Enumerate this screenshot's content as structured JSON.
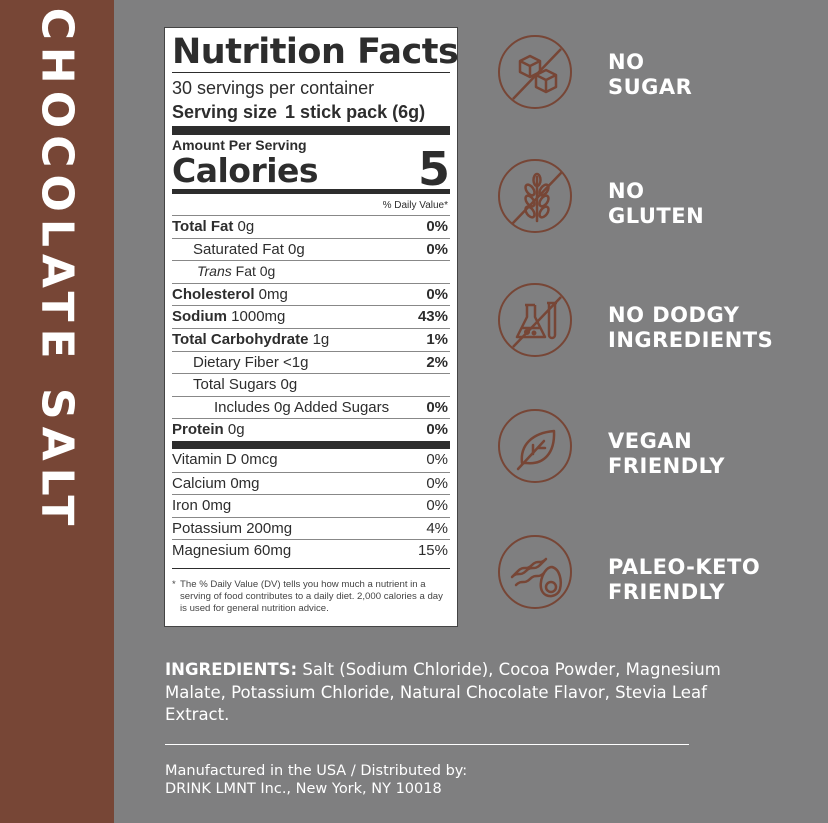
{
  "flavor": "CHOCOLATE SALT",
  "colors": {
    "brand": "#774636",
    "background": "#7f7f80",
    "text_light": "#ffffff",
    "label_ink": "#2d2d2d"
  },
  "nutrition": {
    "title": "Nutrition Facts",
    "servings": "30 servings per container",
    "serving_size_label": "Serving size",
    "serving_size_value": "1 stick pack (6g)",
    "amount_per_serving": "Amount Per Serving",
    "calories_label": "Calories",
    "calories_value": "5",
    "dv_header": "% Daily Value*",
    "rows": [
      {
        "bold": "Total Fat",
        "rest": " 0g",
        "pct": "0%"
      },
      {
        "bold": "",
        "rest": "Saturated Fat 0g",
        "pct": "0%"
      },
      {
        "italic": "Trans",
        "rest": " Fat 0g",
        "pct": ""
      },
      {
        "bold": "Cholesterol",
        "rest": " 0mg",
        "pct": "0%"
      },
      {
        "bold": "Sodium",
        "rest": " 1000mg",
        "pct": "43%"
      },
      {
        "bold": "Total Carbohydrate",
        "rest": " 1g",
        "pct": "1%"
      },
      {
        "bold": "",
        "rest": "Dietary Fiber <1g",
        "pct": "2%"
      },
      {
        "bold": "",
        "rest": "Total Sugars 0g",
        "pct": ""
      },
      {
        "bold": "",
        "rest": "Includes 0g Added Sugars",
        "pct": "0%"
      },
      {
        "bold": "Protein",
        "rest": " 0g",
        "pct": "0%"
      }
    ],
    "vitamins": [
      {
        "name": "Vitamin D 0mcg",
        "pct": "0%"
      },
      {
        "name": "Calcium 0mg",
        "pct": "0%"
      },
      {
        "name": "Iron 0mg",
        "pct": "0%"
      },
      {
        "name": "Potassium 200mg",
        "pct": "4%"
      },
      {
        "name": "Magnesium 60mg",
        "pct": "15%"
      }
    ],
    "footnote_star": "*",
    "footnote": "The % Daily Value (DV) tells you how much a nutrient in a serving of food contributes to a daily diet. 2,000 calories a day is used for general nutrition advice."
  },
  "claims": [
    {
      "line1": "NO",
      "line2": "SUGAR",
      "icon": "sugar-cubes-crossed-icon"
    },
    {
      "line1": "NO",
      "line2": "GLUTEN",
      "icon": "wheat-crossed-icon"
    },
    {
      "line1": "NO DODGY",
      "line2": "INGREDIENTS",
      "icon": "lab-flask-crossed-icon"
    },
    {
      "line1": "VEGAN",
      "line2": "FRIENDLY",
      "icon": "leaf-icon"
    },
    {
      "line1": "PALEO-KETO",
      "line2": "FRIENDLY",
      "icon": "bacon-avocado-icon"
    }
  ],
  "ingredients": {
    "label": "INGREDIENTS:",
    "text": " Salt (Sodium Chloride), Cocoa Powder, Magnesium Malate, Potassium Chloride,  Natural Chocolate Flavor, Stevia Leaf Extract."
  },
  "manufacturer": {
    "line1": "Manufactured in the USA / Distributed by:",
    "line2": "DRINK LMNT Inc., New York, NY 10018"
  }
}
